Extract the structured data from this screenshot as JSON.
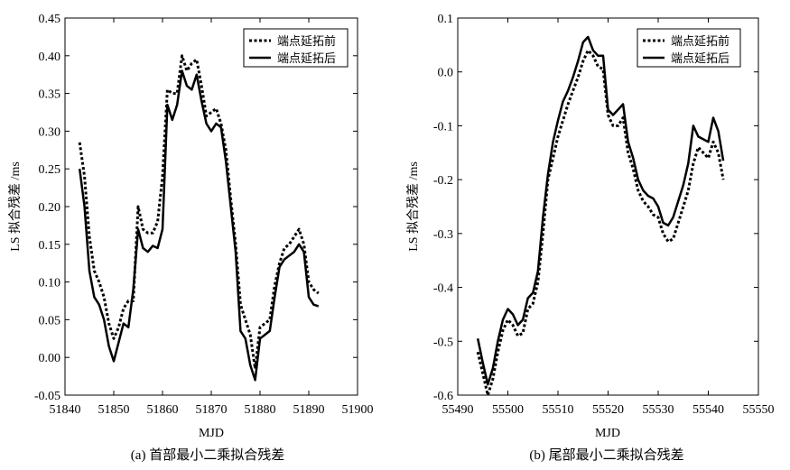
{
  "chart_data": [
    {
      "type": "line",
      "caption": "(a) 首部最小二乘拟合残差",
      "xlabel": "MJD",
      "ylabel": "LS 拟合残差 /ms",
      "xlim": [
        51840,
        51900
      ],
      "ylim": [
        -0.05,
        0.45
      ],
      "xticks": [
        51840,
        51850,
        51860,
        51870,
        51880,
        51890,
        51900
      ],
      "yticks": [
        -0.05,
        0.0,
        0.05,
        0.1,
        0.15,
        0.2,
        0.25,
        0.3,
        0.35,
        0.4,
        0.45
      ],
      "ytick_labels": [
        "-0.05",
        "0.00",
        "0.05",
        "0.10",
        "0.15",
        "0.20",
        "0.25",
        "0.30",
        "0.35",
        "0.40",
        "0.45"
      ],
      "grid": false,
      "legend_position": "top-right",
      "series": [
        {
          "name": "端点延拓前",
          "style": "dotted",
          "x": [
            51843,
            51844,
            51845,
            51846,
            51847,
            51848,
            51849,
            51850,
            51851,
            51852,
            51853,
            51854,
            51855,
            51856,
            51857,
            51858,
            51859,
            51860,
            51861,
            51862,
            51863,
            51864,
            51865,
            51866,
            51867,
            51868,
            51869,
            51870,
            51871,
            51872,
            51873,
            51874,
            51875,
            51876,
            51877,
            51878,
            51879,
            51880,
            51881,
            51882,
            51883,
            51884,
            51885,
            51886,
            51887,
            51888,
            51889,
            51890,
            51891,
            51892
          ],
          "y": [
            0.285,
            0.24,
            0.16,
            0.115,
            0.1,
            0.08,
            0.045,
            0.025,
            0.04,
            0.065,
            0.075,
            0.075,
            0.2,
            0.17,
            0.165,
            0.165,
            0.18,
            0.24,
            0.355,
            0.35,
            0.35,
            0.4,
            0.38,
            0.39,
            0.395,
            0.36,
            0.32,
            0.325,
            0.33,
            0.31,
            0.275,
            0.21,
            0.15,
            0.07,
            0.05,
            0.03,
            -0.015,
            0.04,
            0.045,
            0.05,
            0.095,
            0.125,
            0.145,
            0.15,
            0.16,
            0.17,
            0.15,
            0.1,
            0.09,
            0.085
          ]
        },
        {
          "name": "端点延拓后",
          "style": "solid",
          "x": [
            51843,
            51844,
            51845,
            51846,
            51847,
            51848,
            51849,
            51850,
            51851,
            51852,
            51853,
            51854,
            51855,
            51856,
            51857,
            51858,
            51859,
            51860,
            51861,
            51862,
            51863,
            51864,
            51865,
            51866,
            51867,
            51868,
            51869,
            51870,
            51871,
            51872,
            51873,
            51874,
            51875,
            51876,
            51877,
            51878,
            51879,
            51880,
            51881,
            51882,
            51883,
            51884,
            51885,
            51886,
            51887,
            51888,
            51889,
            51890,
            51891,
            51892
          ],
          "y": [
            0.25,
            0.2,
            0.115,
            0.08,
            0.07,
            0.05,
            0.015,
            -0.005,
            0.02,
            0.045,
            0.04,
            0.09,
            0.17,
            0.145,
            0.14,
            0.148,
            0.145,
            0.17,
            0.335,
            0.315,
            0.335,
            0.38,
            0.36,
            0.355,
            0.375,
            0.34,
            0.31,
            0.3,
            0.31,
            0.305,
            0.26,
            0.2,
            0.14,
            0.035,
            0.025,
            -0.01,
            -0.03,
            0.025,
            0.03,
            0.035,
            0.08,
            0.12,
            0.13,
            0.135,
            0.14,
            0.15,
            0.14,
            0.08,
            0.07,
            0.068
          ]
        }
      ]
    },
    {
      "type": "line",
      "caption": "(b) 尾部最小二乘拟合残差",
      "xlabel": "MJD",
      "ylabel": "LS 拟合残差 /ms",
      "xlim": [
        55490,
        55550
      ],
      "ylim": [
        -0.6,
        0.1
      ],
      "xticks": [
        55490,
        55500,
        55510,
        55520,
        55530,
        55540,
        55550
      ],
      "yticks": [
        -0.6,
        -0.5,
        -0.4,
        -0.3,
        -0.2,
        -0.1,
        0.0,
        0.1
      ],
      "ytick_labels": [
        "-0.6",
        "-0.5",
        "-0.4",
        "-0.3",
        "-0.2",
        "-0.1",
        "0.0",
        "0.1"
      ],
      "grid": false,
      "legend_position": "top-right",
      "series": [
        {
          "name": "端点延拓前",
          "style": "dotted",
          "x": [
            55494,
            55495,
            55496,
            55497,
            55498,
            55499,
            55500,
            55501,
            55502,
            55503,
            55504,
            55505,
            55506,
            55507,
            55508,
            55509,
            55510,
            55511,
            55512,
            55513,
            55514,
            55515,
            55516,
            55517,
            55518,
            55519,
            55520,
            55521,
            55522,
            55523,
            55524,
            55525,
            55526,
            55527,
            55528,
            55529,
            55530,
            55531,
            55532,
            55533,
            55534,
            55535,
            55536,
            55537,
            55538,
            55539,
            55540,
            55541,
            55542,
            55543
          ],
          "y": [
            -0.52,
            -0.56,
            -0.6,
            -0.57,
            -0.52,
            -0.48,
            -0.46,
            -0.47,
            -0.49,
            -0.485,
            -0.44,
            -0.43,
            -0.39,
            -0.3,
            -0.2,
            -0.16,
            -0.12,
            -0.09,
            -0.06,
            -0.035,
            -0.01,
            0.02,
            0.04,
            0.03,
            0.01,
            0.005,
            -0.08,
            -0.1,
            -0.1,
            -0.085,
            -0.15,
            -0.18,
            -0.22,
            -0.24,
            -0.25,
            -0.265,
            -0.27,
            -0.3,
            -0.315,
            -0.31,
            -0.28,
            -0.25,
            -0.22,
            -0.17,
            -0.14,
            -0.15,
            -0.16,
            -0.13,
            -0.15,
            -0.2
          ]
        },
        {
          "name": "端点延拓后",
          "style": "solid",
          "x": [
            55494,
            55495,
            55496,
            55497,
            55498,
            55499,
            55500,
            55501,
            55502,
            55503,
            55504,
            55505,
            55506,
            55507,
            55508,
            55509,
            55510,
            55511,
            55512,
            55513,
            55514,
            55515,
            55516,
            55517,
            55518,
            55519,
            55520,
            55521,
            55522,
            55523,
            55524,
            55525,
            55526,
            55527,
            55528,
            55529,
            55530,
            55531,
            55532,
            55533,
            55534,
            55535,
            55536,
            55537,
            55538,
            55539,
            55540,
            55541,
            55542,
            55543
          ],
          "y": [
            -0.495,
            -0.54,
            -0.58,
            -0.55,
            -0.5,
            -0.46,
            -0.44,
            -0.45,
            -0.47,
            -0.46,
            -0.42,
            -0.41,
            -0.37,
            -0.27,
            -0.19,
            -0.13,
            -0.09,
            -0.055,
            -0.035,
            -0.01,
            0.02,
            0.055,
            0.065,
            0.04,
            0.03,
            0.03,
            -0.07,
            -0.08,
            -0.07,
            -0.06,
            -0.13,
            -0.16,
            -0.2,
            -0.22,
            -0.23,
            -0.235,
            -0.25,
            -0.28,
            -0.285,
            -0.27,
            -0.24,
            -0.21,
            -0.17,
            -0.1,
            -0.12,
            -0.125,
            -0.13,
            -0.085,
            -0.11,
            -0.165
          ]
        }
      ]
    }
  ]
}
